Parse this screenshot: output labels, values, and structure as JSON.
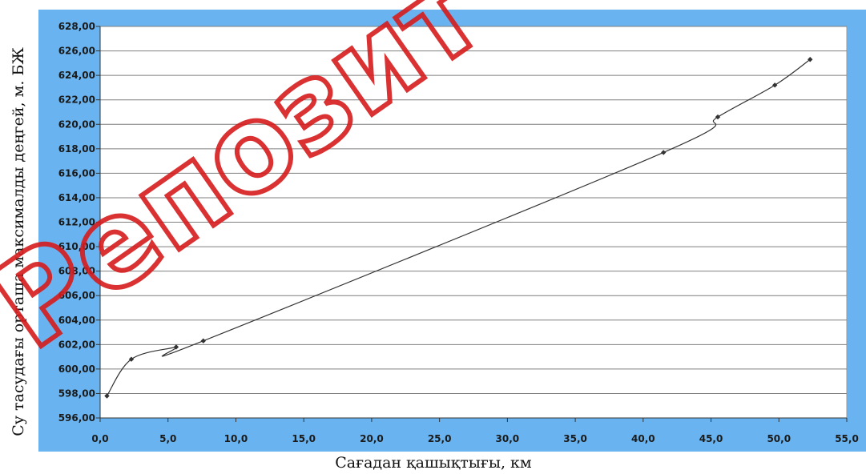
{
  "chart_data": {
    "type": "line",
    "title": "",
    "xlabel": "Сағадан қашықтығы, км",
    "ylabel": "Су тасудағы орташа максималды деңгей, м. БЖ",
    "xlim": [
      0,
      55
    ],
    "ylim": [
      596,
      628
    ],
    "x_ticks": [
      "0,0",
      "5,0",
      "10,0",
      "15,0",
      "20,0",
      "25,0",
      "30,0",
      "35,0",
      "40,0",
      "45,0",
      "50,0",
      "55,0"
    ],
    "y_ticks": [
      "596,00",
      "598,00",
      "600,00",
      "602,00",
      "604,00",
      "606,00",
      "608,00",
      "610,00",
      "612,00",
      "614,00",
      "616,00",
      "618,00",
      "620,00",
      "622,00",
      "624,00",
      "626,00",
      "628,00"
    ],
    "grid": "horizontal",
    "legend": "none",
    "series": [
      {
        "x": [
          0.5,
          2.3,
          5.6,
          7.6,
          41.5,
          45.5,
          49.7,
          52.3
        ],
        "y": [
          597.8,
          600.8,
          601.8,
          602.3,
          617.7,
          620.6,
          623.2,
          625.3
        ]
      }
    ],
    "colors": {
      "frame": "#69B4F0",
      "plot_bg": "#FFFFFF",
      "line": "#333333",
      "marker": "#333333",
      "grid": "#7F7F7F",
      "watermark": "#D61C1C"
    }
  },
  "watermark": {
    "text": "Репозит"
  }
}
